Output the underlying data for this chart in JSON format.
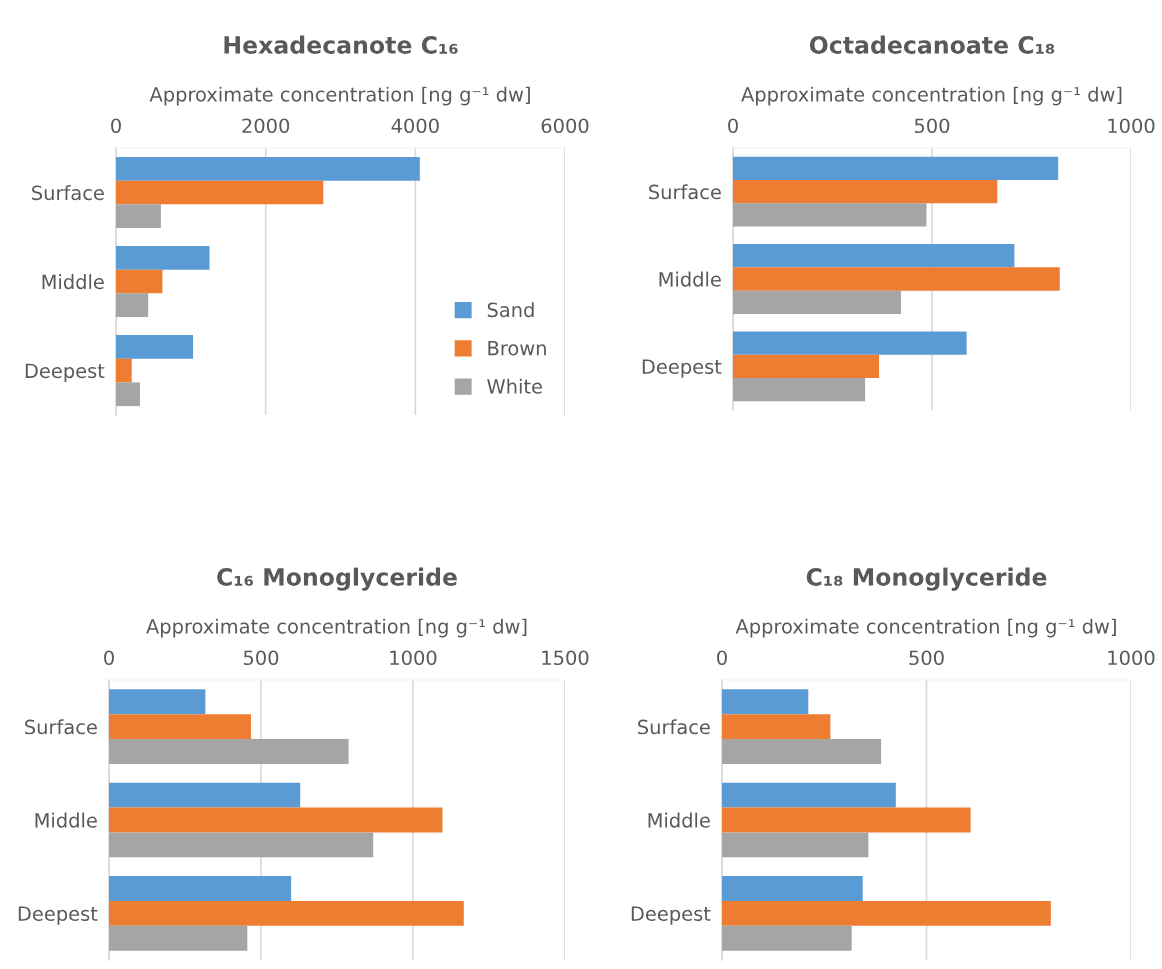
{
  "chart_data": [
    {
      "type": "bar",
      "orientation": "horizontal",
      "title": "Hexadecanote C₁₆",
      "xlabel": "Approximate concentration [ng g⁻¹ dw]",
      "categories": [
        "Surface",
        "Middle",
        "Deepest"
      ],
      "xlim": [
        0,
        6000
      ],
      "xticks": [
        0,
        2000,
        4000,
        6000
      ],
      "grid": "x",
      "legend": "bottom right",
      "series": [
        {
          "name": "Sand",
          "color": "#5b9bd5",
          "values": [
            4060,
            1250,
            1030
          ]
        },
        {
          "name": "Brown",
          "color": "#ed7d31",
          "values": [
            2770,
            620,
            210
          ]
        },
        {
          "name": "White",
          "color": "#a5a5a5",
          "values": [
            600,
            430,
            320
          ]
        }
      ]
    },
    {
      "type": "bar",
      "orientation": "horizontal",
      "title": "Octadecanoate C₁₈",
      "xlabel": "Approximate concentration [ng g⁻¹ dw]",
      "categories": [
        "Surface",
        "Middle",
        "Deepest"
      ],
      "xlim": [
        0,
        1000
      ],
      "xticks": [
        0,
        500,
        1000
      ],
      "grid": "x",
      "series": [
        {
          "color": "#5b9bd5",
          "values": [
            817,
            707,
            587
          ]
        },
        {
          "color": "#ed7d31",
          "values": [
            664,
            821,
            367
          ]
        },
        {
          "color": "#a5a5a5",
          "values": [
            486,
            422,
            332
          ]
        }
      ]
    },
    {
      "type": "bar",
      "orientation": "horizontal",
      "title": "C₁₆ Monoglyceride",
      "xlabel": "Approximate concentration [ng g⁻¹ dw]",
      "categories": [
        "Surface",
        "Middle",
        "Deepest"
      ],
      "xlim": [
        0,
        1500
      ],
      "xticks": [
        0,
        500,
        1000,
        1500
      ],
      "grid": "x",
      "series": [
        {
          "color": "#5b9bd5",
          "values": [
            317,
            629,
            599
          ]
        },
        {
          "color": "#ed7d31",
          "values": [
            467,
            1097,
            1167
          ]
        },
        {
          "color": "#a5a5a5",
          "values": [
            788,
            869,
            455
          ]
        }
      ]
    },
    {
      "type": "bar",
      "orientation": "horizontal",
      "title": "C₁₈ Monoglyceride",
      "xlabel": "Approximate concentration [ng g⁻¹ dw]",
      "categories": [
        "Surface",
        "Middle",
        "Deepest"
      ],
      "xlim": [
        0,
        1000
      ],
      "xticks": [
        0,
        500,
        1000
      ],
      "grid": "x",
      "series": [
        {
          "color": "#5b9bd5",
          "values": [
            211,
            425,
            344
          ]
        },
        {
          "color": "#ed7d31",
          "values": [
            265,
            608,
            804
          ]
        },
        {
          "color": "#a5a5a5",
          "values": [
            389,
            358,
            317
          ]
        }
      ]
    }
  ]
}
